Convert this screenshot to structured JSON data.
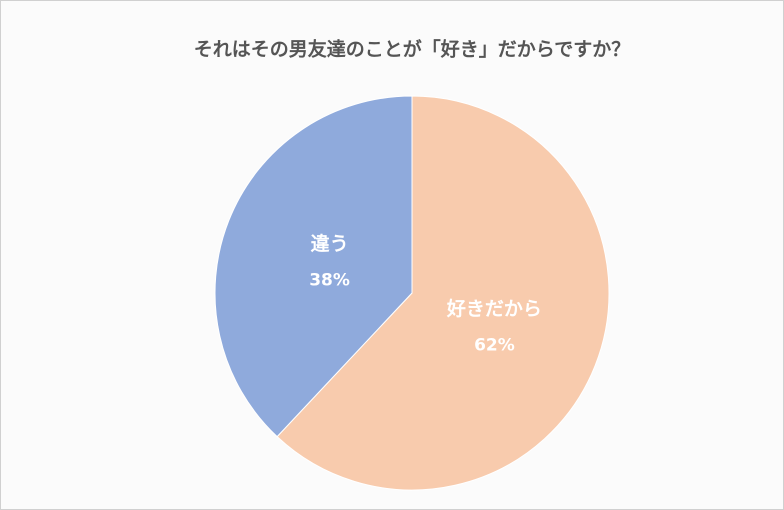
{
  "chart_data": {
    "type": "pie",
    "title": "それはその男友達のことが「好き」だからですか？",
    "categories": [
      "好きだから",
      "違う"
    ],
    "values": [
      62,
      38
    ],
    "value_labels": [
      "62%",
      "38%"
    ],
    "colors": [
      "#f8cbad",
      "#8faadc"
    ]
  }
}
